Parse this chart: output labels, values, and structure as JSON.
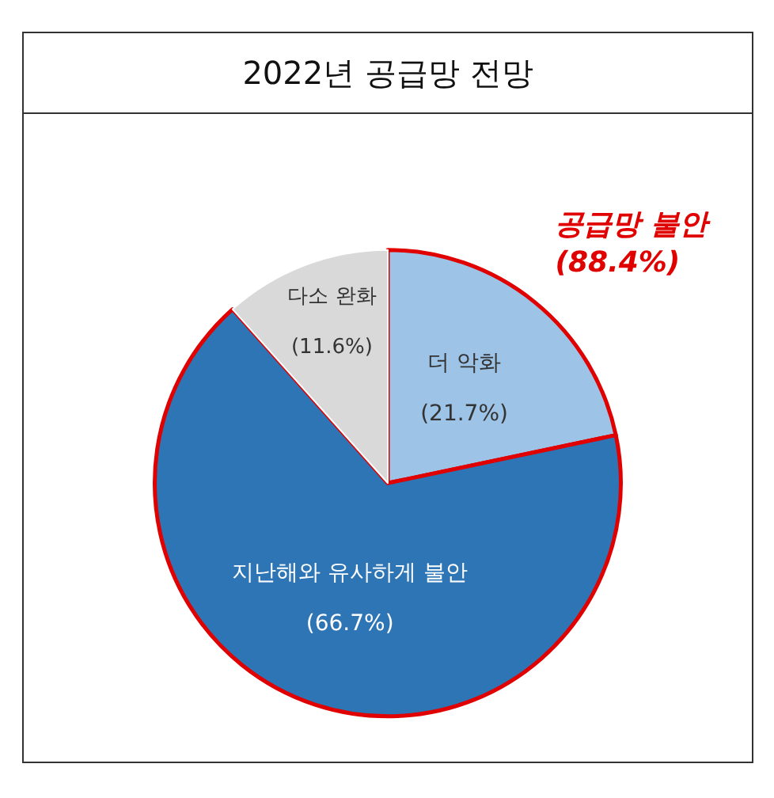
{
  "chart_data": {
    "type": "pie",
    "title": "2022년 공급망 전망",
    "categories": [
      "더 악화",
      "지난해와 유사하게 불안",
      "다소 완화"
    ],
    "values": [
      21.7,
      66.7,
      11.6
    ],
    "value_labels": [
      "(21.7%)",
      "(66.7%)",
      "(11.6%)"
    ],
    "colors": [
      "#9dc3e6",
      "#2e75b6",
      "#d9d9d9"
    ],
    "annotations": [
      "공급망 불안\n(88.4%)"
    ],
    "legend": false
  }
}
